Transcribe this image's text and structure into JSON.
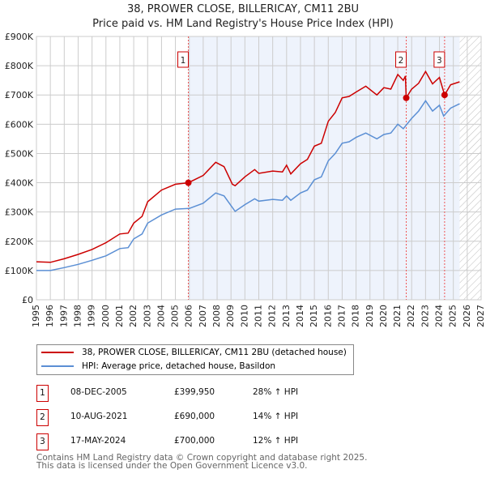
{
  "chart_data": {
    "type": "line",
    "title": "38, PROWER CLOSE, BILLERICAY, CM11 2BU",
    "subtitle": "Price paid vs. HM Land Registry's House Price Index (HPI)",
    "xlim": [
      1995,
      2027
    ],
    "ylim": [
      0,
      900000
    ],
    "x_ticks": [
      "1995",
      "1996",
      "1997",
      "1998",
      "1999",
      "2000",
      "2001",
      "2002",
      "2003",
      "2004",
      "2005",
      "2006",
      "2007",
      "2008",
      "2009",
      "2010",
      "2011",
      "2012",
      "2013",
      "2014",
      "2015",
      "2016",
      "2017",
      "2018",
      "2019",
      "2020",
      "2021",
      "2022",
      "2023",
      "2024",
      "2025",
      "2026",
      "2027"
    ],
    "y_ticks": [
      {
        "v": 0,
        "label": "£0"
      },
      {
        "v": 100000,
        "label": "£100K"
      },
      {
        "v": 200000,
        "label": "£200K"
      },
      {
        "v": 300000,
        "label": "£300K"
      },
      {
        "v": 400000,
        "label": "£400K"
      },
      {
        "v": 500000,
        "label": "£500K"
      },
      {
        "v": 600000,
        "label": "£600K"
      },
      {
        "v": 700000,
        "label": "£700K"
      },
      {
        "v": 800000,
        "label": "£800K"
      },
      {
        "v": 900000,
        "label": "£900K"
      }
    ],
    "grid": true,
    "shaded_from": 2005.93,
    "data_end": 2025.45,
    "series": [
      {
        "name": "38, PROWER CLOSE, BILLERICAY, CM11 2BU (detached house)",
        "color": "#cc0000",
        "x": [
          1995,
          1996,
          1997,
          1998,
          1999,
          2000,
          2001,
          2001.6,
          2002,
          2002.6,
          2003,
          2004,
          2005,
          2005.93,
          2007,
          2007.9,
          2008.5,
          2009.1,
          2009.3,
          2010,
          2010.7,
          2011,
          2012,
          2012.7,
          2013,
          2013.3,
          2014,
          2014.5,
          2015,
          2015.5,
          2016,
          2016.5,
          2017,
          2017.5,
          2018,
          2018.7,
          2019.5,
          2020,
          2020.5,
          2021,
          2021.4,
          2021.55,
          2021.61,
          2022,
          2022.5,
          2023,
          2023.5,
          2024,
          2024.37,
          2024.8,
          2025.45
        ],
        "y": [
          130000,
          128000,
          140000,
          155000,
          172000,
          195000,
          225000,
          228000,
          262000,
          285000,
          335000,
          375000,
          395000,
          399950,
          425000,
          470000,
          455000,
          395000,
          390000,
          420000,
          445000,
          432000,
          440000,
          437000,
          460000,
          430000,
          465000,
          480000,
          525000,
          535000,
          610000,
          640000,
          690000,
          695000,
          710000,
          730000,
          700000,
          725000,
          720000,
          770000,
          750000,
          765000,
          690000,
          720000,
          740000,
          780000,
          738000,
          760000,
          700000,
          735000,
          745000
        ]
      },
      {
        "name": "HPI: Average price, detached house, Basildon",
        "color": "#5b8fd4",
        "x": [
          1995,
          1996,
          1997,
          1998,
          1999,
          2000,
          2001,
          2001.6,
          2002,
          2002.6,
          2003,
          2004,
          2005,
          2006,
          2007,
          2007.9,
          2008.5,
          2009.3,
          2010,
          2010.7,
          2011,
          2012,
          2012.7,
          2013,
          2013.3,
          2014,
          2014.5,
          2015,
          2015.5,
          2016,
          2016.5,
          2017,
          2017.5,
          2018,
          2018.7,
          2019.5,
          2020,
          2020.5,
          2021,
          2021.4,
          2022,
          2022.5,
          2023,
          2023.5,
          2024,
          2024.3,
          2024.8,
          2025.45
        ],
        "y": [
          100000,
          100000,
          110000,
          121000,
          135000,
          150000,
          175000,
          178000,
          208000,
          225000,
          262000,
          290000,
          310000,
          312000,
          330000,
          365000,
          355000,
          302000,
          325000,
          345000,
          337000,
          343000,
          340000,
          355000,
          340000,
          365000,
          375000,
          410000,
          420000,
          475000,
          500000,
          535000,
          540000,
          555000,
          570000,
          550000,
          565000,
          570000,
          600000,
          585000,
          620000,
          645000,
          680000,
          645000,
          665000,
          628000,
          655000,
          670000
        ]
      }
    ],
    "sales": [
      {
        "n": "1",
        "date": "08-DEC-2005",
        "x": 2005.93,
        "price": "£399,950",
        "value": 399950,
        "hpi": "28% ↑ HPI"
      },
      {
        "n": "2",
        "date": "10-AUG-2021",
        "x": 2021.61,
        "price": "£690,000",
        "value": 690000,
        "hpi": "14% ↑ HPI"
      },
      {
        "n": "3",
        "date": "17-MAY-2024",
        "x": 2024.37,
        "price": "£700,000",
        "value": 700000,
        "hpi": "12% ↑ HPI"
      }
    ]
  },
  "footer": {
    "line1": "Contains HM Land Registry data © Crown copyright and database right 2025.",
    "line2": "This data is licensed under the Open Government Licence v3.0."
  }
}
